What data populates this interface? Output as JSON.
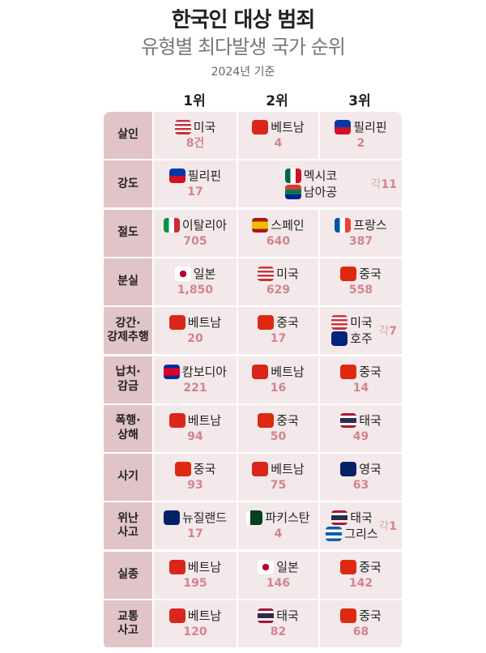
{
  "title": "한국인 대상 범죄",
  "subtitle": "유형별 최다발생 국가 순위",
  "basis": "2024년 기준",
  "ranks": [
    "1위",
    "2위",
    "3위"
  ],
  "each_prefix": "각",
  "flag_colors": {
    "us": "linear-gradient(#c8323c 0 14%,#fff 14% 28%,#c8323c 28% 42%,#fff 42% 56%,#c8323c 56% 70%,#fff 70% 84%,#c8323c 84%)",
    "vn": "#da251d",
    "ph": "linear-gradient(#0038a8 0 50%,#ce1126 50%)",
    "mx": "linear-gradient(90deg,#006847 0 33%,#fff 33% 66%,#ce1126 66%)",
    "za": "linear-gradient(#de3831 0 33%,#007a4d 33% 66%,#002395 66%)",
    "it": "linear-gradient(90deg,#009246 0 33%,#fff 33% 66%,#ce2b37 66%)",
    "es": "linear-gradient(#aa151b 0 25%,#f1bf00 25% 75%,#aa151b 75%)",
    "fr": "linear-gradient(90deg,#0055a4 0 33%,#fff 33% 66%,#ef4135 66%)",
    "jp": "radial-gradient(circle,#bc002d 0 30%,#fff 32%)",
    "cn": "#de2910",
    "au": "#00247d",
    "kh": "linear-gradient(#032ea1 0 25%,#e00025 25% 75%,#032ea1 75%)",
    "th": "linear-gradient(#a51931 0 16%,#f4f5f8 16% 33%,#2d2a4a 33% 66%,#f4f5f8 66% 83%,#a51931 83%)",
    "gb": "#012169",
    "nz": "#012169",
    "pk": "linear-gradient(90deg,#fff 0 25%,#01411c 25%)",
    "gr": "linear-gradient(#0d5eaf 0 20%,#fff 20% 40%,#0d5eaf 40% 60%,#fff 60% 80%,#0d5eaf 80%)"
  },
  "rows": [
    {
      "label": "살인",
      "cells": [
        {
          "flags": [
            "us"
          ],
          "countries": [
            "미국"
          ],
          "value": "8건"
        },
        {
          "flags": [
            "vn"
          ],
          "countries": [
            "베트남"
          ],
          "value": "4"
        },
        {
          "flags": [
            "ph"
          ],
          "countries": [
            "필리핀"
          ],
          "value": "2"
        }
      ]
    },
    {
      "label": "강도",
      "cells": [
        {
          "flags": [
            "ph"
          ],
          "countries": [
            "필리핀"
          ],
          "value": "17"
        },
        {
          "flags": [
            "mx",
            "za"
          ],
          "countries": [
            "멕시코",
            "남아공"
          ],
          "value": "11",
          "merged": true
        }
      ]
    },
    {
      "label": "절도",
      "cells": [
        {
          "flags": [
            "it"
          ],
          "countries": [
            "이탈리아"
          ],
          "value": "705"
        },
        {
          "flags": [
            "es"
          ],
          "countries": [
            "스페인"
          ],
          "value": "640"
        },
        {
          "flags": [
            "fr"
          ],
          "countries": [
            "프랑스"
          ],
          "value": "387"
        }
      ]
    },
    {
      "label": "분실",
      "cells": [
        {
          "flags": [
            "jp"
          ],
          "countries": [
            "일본"
          ],
          "value": "1,850"
        },
        {
          "flags": [
            "us"
          ],
          "countries": [
            "미국"
          ],
          "value": "629"
        },
        {
          "flags": [
            "cn"
          ],
          "countries": [
            "중국"
          ],
          "value": "558"
        }
      ]
    },
    {
      "label": "강간·\n강제추행",
      "cells": [
        {
          "flags": [
            "vn"
          ],
          "countries": [
            "베트남"
          ],
          "value": "20"
        },
        {
          "flags": [
            "cn"
          ],
          "countries": [
            "중국"
          ],
          "value": "17"
        },
        {
          "flags": [
            "us",
            "au"
          ],
          "countries": [
            "미국",
            "호주"
          ],
          "value": "7"
        }
      ]
    },
    {
      "label": "납치·\n감금",
      "cells": [
        {
          "flags": [
            "kh"
          ],
          "countries": [
            "캄보디아"
          ],
          "value": "221"
        },
        {
          "flags": [
            "vn"
          ],
          "countries": [
            "베트남"
          ],
          "value": "16"
        },
        {
          "flags": [
            "cn"
          ],
          "countries": [
            "중국"
          ],
          "value": "14"
        }
      ]
    },
    {
      "label": "폭행·\n상해",
      "cells": [
        {
          "flags": [
            "vn"
          ],
          "countries": [
            "베트남"
          ],
          "value": "94"
        },
        {
          "flags": [
            "cn"
          ],
          "countries": [
            "중국"
          ],
          "value": "50"
        },
        {
          "flags": [
            "th"
          ],
          "countries": [
            "태국"
          ],
          "value": "49"
        }
      ]
    },
    {
      "label": "사기",
      "cells": [
        {
          "flags": [
            "cn"
          ],
          "countries": [
            "중국"
          ],
          "value": "93"
        },
        {
          "flags": [
            "vn"
          ],
          "countries": [
            "베트남"
          ],
          "value": "75"
        },
        {
          "flags": [
            "gb"
          ],
          "countries": [
            "영국"
          ],
          "value": "63"
        }
      ]
    },
    {
      "label": "위난\n사고",
      "cells": [
        {
          "flags": [
            "nz"
          ],
          "countries": [
            "뉴질랜드"
          ],
          "value": "17"
        },
        {
          "flags": [
            "pk"
          ],
          "countries": [
            "파키스탄"
          ],
          "value": "4"
        },
        {
          "flags": [
            "th",
            "gr"
          ],
          "countries": [
            "태국",
            "그리스"
          ],
          "value": "1"
        }
      ]
    },
    {
      "label": "실종",
      "cells": [
        {
          "flags": [
            "vn"
          ],
          "countries": [
            "베트남"
          ],
          "value": "195"
        },
        {
          "flags": [
            "jp"
          ],
          "countries": [
            "일본"
          ],
          "value": "146"
        },
        {
          "flags": [
            "cn"
          ],
          "countries": [
            "중국"
          ],
          "value": "142"
        }
      ]
    },
    {
      "label": "교통\n사고",
      "cells": [
        {
          "flags": [
            "vn"
          ],
          "countries": [
            "베트남"
          ],
          "value": "120"
        },
        {
          "flags": [
            "th"
          ],
          "countries": [
            "태국"
          ],
          "value": "82"
        },
        {
          "flags": [
            "cn"
          ],
          "countries": [
            "중국"
          ],
          "value": "68"
        }
      ]
    }
  ]
}
